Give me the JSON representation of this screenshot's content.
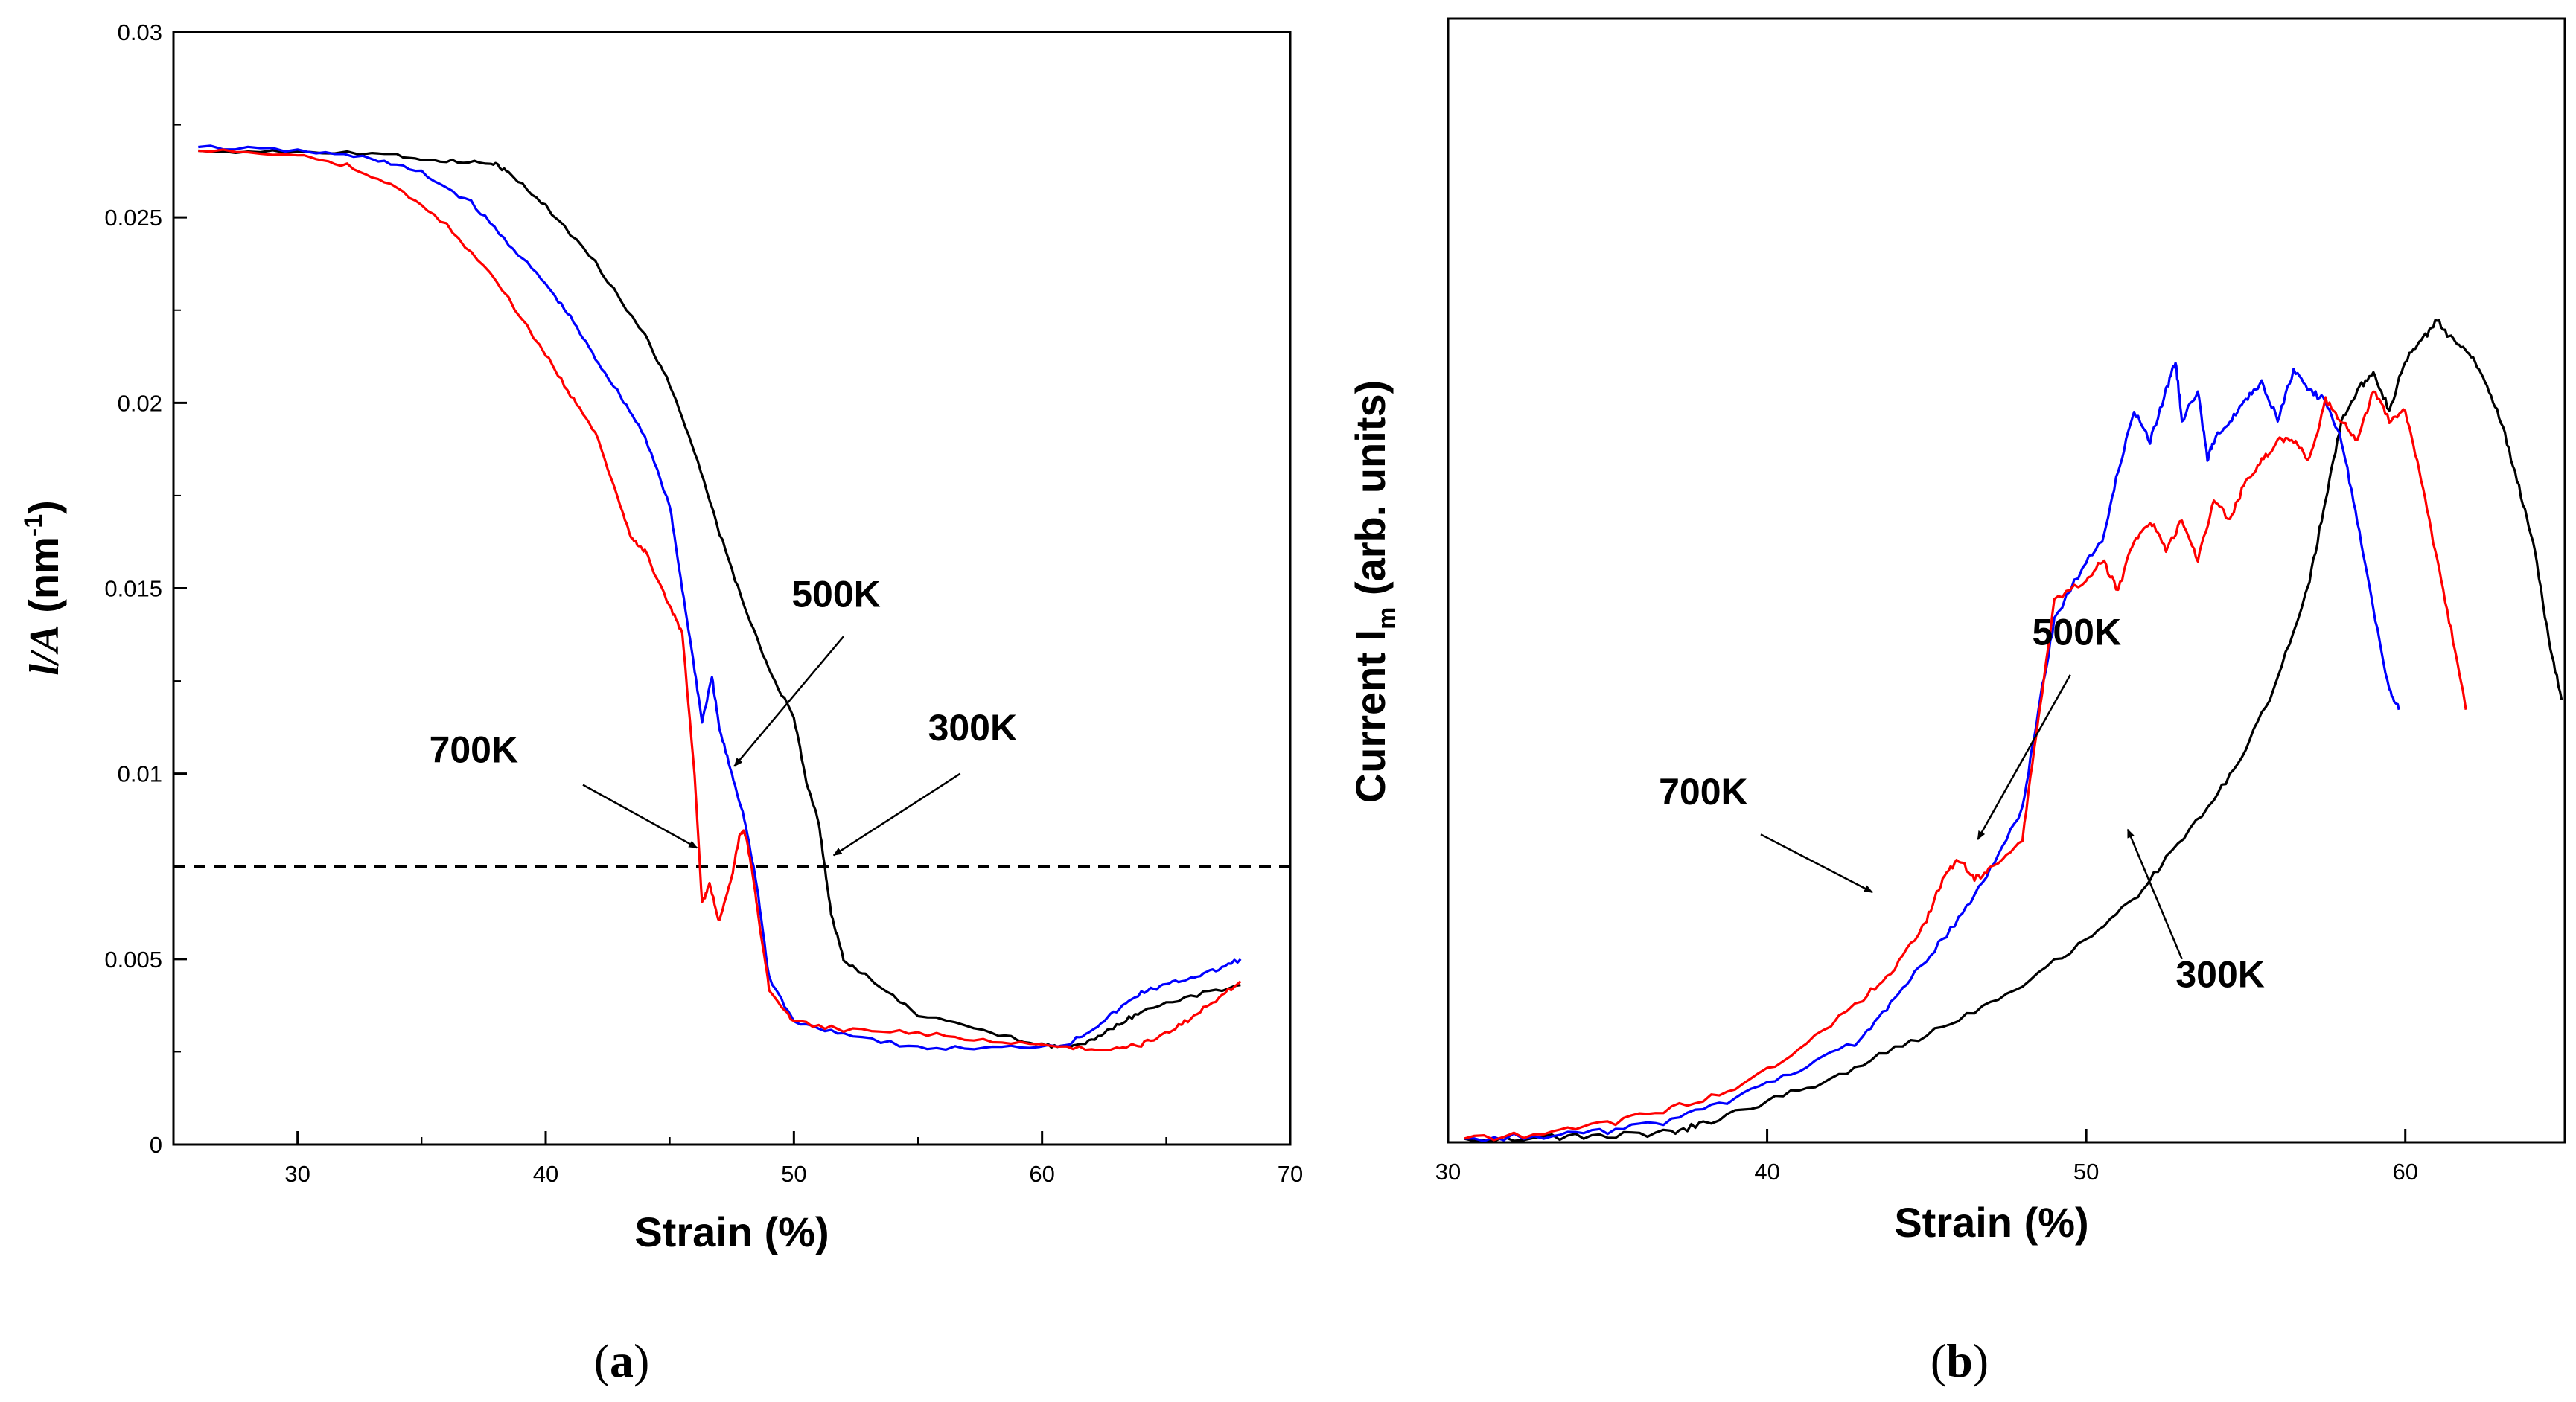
{
  "chart_data": [
    {
      "type": "line",
      "panel_label": "a",
      "xlabel": "Strain (%)",
      "ylabel": {
        "italic": "l/A",
        "unit_prefix": " (nm",
        "unit_sup": "-1",
        "unit_suffix": ")"
      },
      "xlim": [
        25,
        70
      ],
      "ylim": [
        0,
        0.03
      ],
      "xticks": [
        30,
        40,
        50,
        60,
        70
      ],
      "yticks": [
        0,
        0.005,
        0.01,
        0.015,
        0.02,
        0.025,
        0.03
      ],
      "ytick_labels": [
        "0",
        "0.005",
        "0.01",
        "0.015",
        "0.02",
        "0.025",
        "0.03"
      ],
      "reference_line": {
        "y": 0.0075,
        "style": "dashed"
      },
      "series": [
        {
          "name": "300K",
          "color": "#000000",
          "x": [
            26,
            30,
            34,
            36,
            37.8,
            38.5,
            40,
            42,
            44,
            45,
            46,
            47,
            48,
            49,
            50,
            50.5,
            51,
            51.3,
            51.5,
            52,
            53,
            55,
            58,
            60,
            61,
            62,
            63,
            64,
            66,
            68
          ],
          "y": [
            0.0268,
            0.0268,
            0.0267,
            0.0265,
            0.0265,
            0.0262,
            0.0253,
            0.0238,
            0.0218,
            0.0205,
            0.0187,
            0.0165,
            0.0145,
            0.0128,
            0.0115,
            0.0098,
            0.0087,
            0.0072,
            0.0062,
            0.005,
            0.0045,
            0.0035,
            0.003,
            0.0027,
            0.0026,
            0.0028,
            0.0032,
            0.0036,
            0.004,
            0.0043
          ]
        },
        {
          "name": "500K",
          "color": "#0000ff",
          "x": [
            26,
            30,
            33,
            35,
            37,
            38.5,
            40,
            41,
            42,
            43,
            44,
            45,
            45.5,
            46,
            46.3,
            46.7,
            47,
            47.5,
            48,
            48.5,
            49,
            50,
            52,
            55,
            58,
            61,
            62,
            63,
            64,
            65,
            66,
            67,
            68
          ],
          "y": [
            0.0269,
            0.0268,
            0.0266,
            0.0262,
            0.0254,
            0.0243,
            0.0232,
            0.0223,
            0.0212,
            0.0202,
            0.0191,
            0.0172,
            0.015,
            0.0128,
            0.0114,
            0.0126,
            0.0112,
            0.01,
            0.0088,
            0.007,
            0.0045,
            0.0033,
            0.003,
            0.0026,
            0.0026,
            0.0027,
            0.0031,
            0.0036,
            0.0041,
            0.0043,
            0.0045,
            0.0047,
            0.005
          ]
        },
        {
          "name": "700K",
          "color": "#ff0000",
          "x": [
            26,
            30,
            32,
            34,
            36,
            38,
            40,
            41,
            42,
            43,
            43.5,
            44,
            45,
            45.5,
            46,
            46.3,
            46.6,
            47,
            47.5,
            47.8,
            48,
            48.3,
            48.6,
            49,
            50,
            52,
            55,
            58,
            61,
            63,
            64,
            65,
            66,
            67,
            68
          ],
          "y": [
            0.0268,
            0.0267,
            0.0264,
            0.0258,
            0.0248,
            0.0233,
            0.0213,
            0.0202,
            0.0192,
            0.0172,
            0.0163,
            0.016,
            0.0145,
            0.0138,
            0.01,
            0.0065,
            0.007,
            0.006,
            0.0072,
            0.0083,
            0.0085,
            0.0075,
            0.006,
            0.0042,
            0.0033,
            0.0031,
            0.003,
            0.0028,
            0.0026,
            0.0026,
            0.0027,
            0.003,
            0.0034,
            0.0039,
            0.0044
          ]
        }
      ],
      "annotations": [
        {
          "text": "700K",
          "series": "700K"
        },
        {
          "text": "500K",
          "series": "500K"
        },
        {
          "text": "300K",
          "series": "300K"
        }
      ]
    },
    {
      "type": "line",
      "panel_label": "b",
      "xlabel": "Strain (%)",
      "ylabel": {
        "prefix": "Current  I",
        "sub": "m",
        "suffix": " (arb. units)"
      },
      "xlim": [
        30,
        65
      ],
      "ylim": [
        0,
        1
      ],
      "xticks": [
        30,
        40,
        50,
        60
      ],
      "series": [
        {
          "name": "300K",
          "color": "#000000",
          "x": [
            30.5,
            33,
            35,
            37,
            38,
            40,
            42,
            44,
            46,
            48,
            50,
            51.5,
            52.5,
            54,
            55,
            56,
            57,
            57.5,
            58,
            58.5,
            59,
            59.5,
            60,
            60.5,
            61,
            61.5,
            62,
            62.5,
            63,
            63.5,
            64,
            64.5,
            64.9
          ],
          "y": [
            0,
            0.001,
            0.003,
            0.006,
            0.015,
            0.037,
            0.06,
            0.09,
            0.12,
            0.155,
            0.2,
            0.24,
            0.28,
            0.34,
            0.39,
            0.46,
            0.56,
            0.64,
            0.72,
            0.75,
            0.77,
            0.73,
            0.78,
            0.8,
            0.82,
            0.8,
            0.79,
            0.76,
            0.72,
            0.66,
            0.6,
            0.5,
            0.44
          ]
        },
        {
          "name": "500K",
          "color": "#0000ff",
          "x": [
            30.5,
            33,
            35,
            37,
            39,
            41,
            43,
            44,
            45,
            46,
            47,
            48,
            48.5,
            49,
            50,
            50.5,
            51,
            51.5,
            52,
            52.5,
            52.8,
            53,
            53.5,
            53.8,
            54,
            54.5,
            55,
            55.5,
            56,
            56.5,
            57,
            57.5,
            58,
            58.5,
            59,
            59.5,
            59.8
          ],
          "y": [
            0,
            0.003,
            0.008,
            0.018,
            0.04,
            0.07,
            0.1,
            0.14,
            0.18,
            0.22,
            0.27,
            0.33,
            0.43,
            0.52,
            0.58,
            0.6,
            0.67,
            0.73,
            0.7,
            0.75,
            0.78,
            0.72,
            0.75,
            0.68,
            0.7,
            0.72,
            0.74,
            0.76,
            0.72,
            0.77,
            0.75,
            0.74,
            0.7,
            0.62,
            0.53,
            0.45,
            0.43
          ]
        },
        {
          "name": "700K",
          "color": "#ff0000",
          "x": [
            30.5,
            33,
            35,
            37,
            39,
            41,
            43,
            44,
            45,
            45.5,
            46,
            46.5,
            47,
            48,
            48.5,
            49,
            50,
            50.5,
            51,
            51.5,
            52,
            52.5,
            53,
            53.5,
            54,
            54.5,
            55,
            55.5,
            56,
            56.5,
            57,
            57.5,
            58,
            58.5,
            59,
            59.5,
            60,
            60.5,
            61,
            61.5,
            61.9
          ],
          "y": [
            0,
            0.005,
            0.015,
            0.03,
            0.05,
            0.09,
            0.14,
            0.17,
            0.22,
            0.26,
            0.28,
            0.26,
            0.27,
            0.3,
            0.42,
            0.54,
            0.56,
            0.58,
            0.55,
            0.6,
            0.62,
            0.59,
            0.62,
            0.58,
            0.64,
            0.62,
            0.66,
            0.68,
            0.7,
            0.7,
            0.68,
            0.74,
            0.72,
            0.7,
            0.75,
            0.72,
            0.73,
            0.66,
            0.58,
            0.5,
            0.43
          ]
        }
      ],
      "annotations": [
        {
          "text": "700K",
          "series": "700K"
        },
        {
          "text": "500K",
          "series": "500K"
        },
        {
          "text": "300K",
          "series": "300K"
        }
      ]
    }
  ]
}
